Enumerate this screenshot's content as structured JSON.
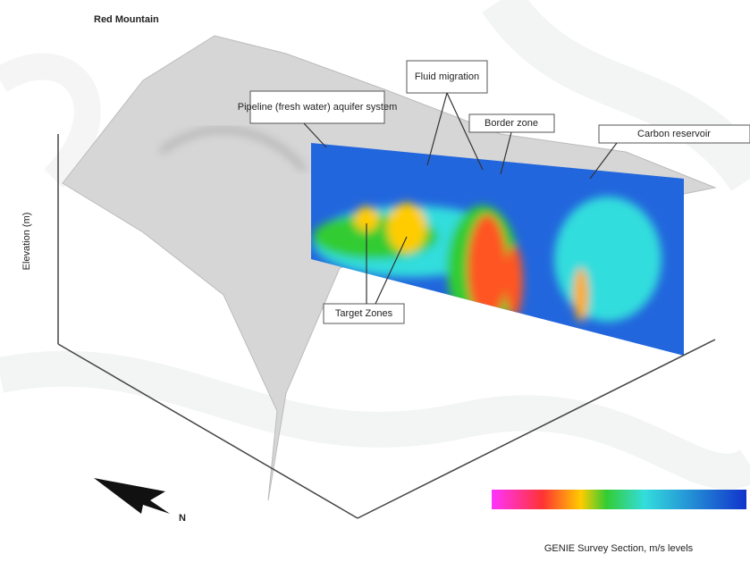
{
  "title": "Red Mountain",
  "annotations": [
    "Pipeline (fresh water) aquifer system",
    "Fluid migration",
    "Border zone",
    "Carbon reservoir",
    "Target Zones"
  ],
  "axis_label": "Elevation (m)",
  "north_label": "N",
  "colorbar_label": "GENIE Survey Section, m/s levels"
}
